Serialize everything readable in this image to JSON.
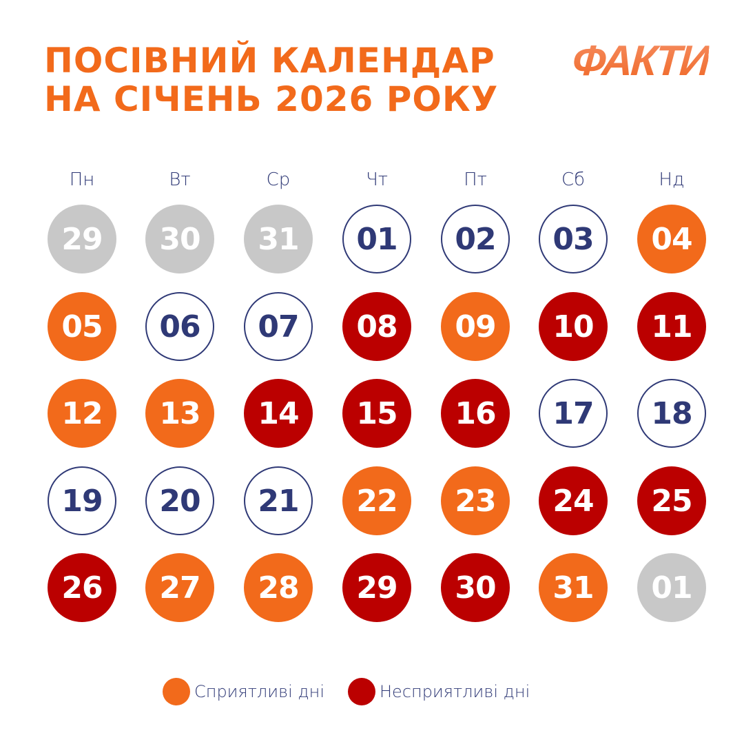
{
  "header": {
    "title_line1": "ПОСІВНИЙ КАЛЕНДАР",
    "title_line2": "НА СІЧЕНЬ 2026 РОКУ",
    "logo": "ФАКТИ"
  },
  "colors": {
    "favorable": "#F26A1B",
    "unfavorable": "#BB0000",
    "neutral_outline": "#2F3976",
    "other_month": "#C8C8C8"
  },
  "calendar": {
    "month": "Січень 2026",
    "weekdays": [
      "Пн",
      "Вт",
      "Ср",
      "Чт",
      "Пт",
      "Сб",
      "Нд"
    ],
    "weeks": [
      [
        {
          "day": "29",
          "type": "other"
        },
        {
          "day": "30",
          "type": "other"
        },
        {
          "day": "31",
          "type": "other"
        },
        {
          "day": "01",
          "type": "neutral"
        },
        {
          "day": "02",
          "type": "neutral"
        },
        {
          "day": "03",
          "type": "neutral"
        },
        {
          "day": "04",
          "type": "favorable"
        }
      ],
      [
        {
          "day": "05",
          "type": "favorable"
        },
        {
          "day": "06",
          "type": "neutral"
        },
        {
          "day": "07",
          "type": "neutral"
        },
        {
          "day": "08",
          "type": "unfavorable"
        },
        {
          "day": "09",
          "type": "favorable"
        },
        {
          "day": "10",
          "type": "unfavorable"
        },
        {
          "day": "11",
          "type": "unfavorable"
        }
      ],
      [
        {
          "day": "12",
          "type": "favorable"
        },
        {
          "day": "13",
          "type": "favorable"
        },
        {
          "day": "14",
          "type": "unfavorable"
        },
        {
          "day": "15",
          "type": "unfavorable"
        },
        {
          "day": "16",
          "type": "unfavorable"
        },
        {
          "day": "17",
          "type": "neutral"
        },
        {
          "day": "18",
          "type": "neutral"
        }
      ],
      [
        {
          "day": "19",
          "type": "neutral"
        },
        {
          "day": "20",
          "type": "neutral"
        },
        {
          "day": "21",
          "type": "neutral"
        },
        {
          "day": "22",
          "type": "favorable"
        },
        {
          "day": "23",
          "type": "favorable"
        },
        {
          "day": "24",
          "type": "unfavorable"
        },
        {
          "day": "25",
          "type": "unfavorable"
        }
      ],
      [
        {
          "day": "26",
          "type": "unfavorable"
        },
        {
          "day": "27",
          "type": "favorable"
        },
        {
          "day": "28",
          "type": "favorable"
        },
        {
          "day": "29",
          "type": "unfavorable"
        },
        {
          "day": "30",
          "type": "unfavorable"
        },
        {
          "day": "31",
          "type": "favorable"
        },
        {
          "day": "01",
          "type": "other"
        }
      ]
    ]
  },
  "legend": {
    "items": [
      {
        "label": "Сприятливі дні",
        "color": "#F26A1B"
      },
      {
        "label": "Несприятливі дні",
        "color": "#BB0000"
      }
    ]
  }
}
